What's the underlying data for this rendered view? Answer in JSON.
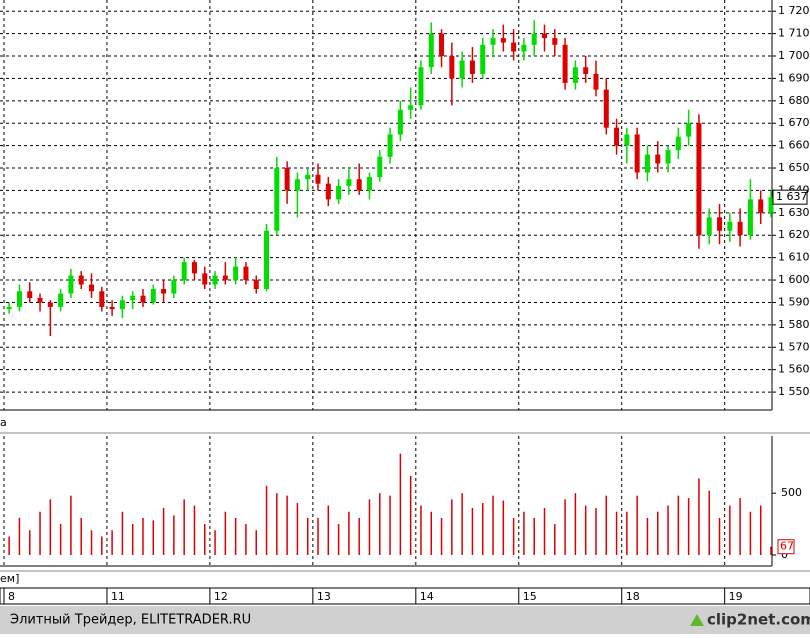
{
  "chart_data": {
    "type": "candlestick",
    "panel_label": "а",
    "volume_panel_label": "ем]",
    "footer_text": "Элитный Трейдер, ELITETRADER.RU",
    "logo_text": "clip2net.com",
    "up_color": "#00dd00",
    "down_color": "#dd0000",
    "volume_color": "#dd0000",
    "grid": true,
    "xlim": [
      0,
      74.5
    ],
    "xticks": [
      {
        "value": 0,
        "label": "8"
      },
      {
        "value": 10,
        "label": "11"
      },
      {
        "value": 20,
        "label": "12"
      },
      {
        "value": 30,
        "label": "13"
      },
      {
        "value": 40,
        "label": "14"
      },
      {
        "value": 50,
        "label": "15"
      },
      {
        "value": 60,
        "label": "18"
      },
      {
        "value": 70,
        "label": "19"
      }
    ],
    "ylim": [
      1542,
      1725
    ],
    "yticks": [
      {
        "value": 1550,
        "label": "1 550"
      },
      {
        "value": 1560,
        "label": "1 560"
      },
      {
        "value": 1570,
        "label": "1 570"
      },
      {
        "value": 1580,
        "label": "1 580"
      },
      {
        "value": 1590,
        "label": "1 590"
      },
      {
        "value": 1600,
        "label": "1 600"
      },
      {
        "value": 1610,
        "label": "1 610"
      },
      {
        "value": 1620,
        "label": "1 620"
      },
      {
        "value": 1630,
        "label": "1 630"
      },
      {
        "value": 1640,
        "label": "1 640"
      },
      {
        "value": 1650,
        "label": "1 650"
      },
      {
        "value": 1660,
        "label": "1 660"
      },
      {
        "value": 1670,
        "label": "1 670"
      },
      {
        "value": 1680,
        "label": "1 680"
      },
      {
        "value": 1690,
        "label": "1 690"
      },
      {
        "value": 1700,
        "label": "1 700"
      },
      {
        "value": 1710,
        "label": "1 710"
      },
      {
        "value": 1720,
        "label": "1 720"
      }
    ],
    "open": [
      1587,
      1588,
      1595,
      1592,
      1590,
      1588,
      1594,
      1602,
      1598,
      1595,
      1588,
      1587,
      1591,
      1593,
      1590,
      1596,
      1594,
      1600,
      1608,
      1603,
      1598,
      1602,
      1600,
      1606,
      1600,
      1596,
      1622,
      1650,
      1640,
      1645,
      1647,
      1643,
      1636,
      1642,
      1645,
      1640,
      1646,
      1655,
      1665,
      1676,
      1678,
      1695,
      1710,
      1700,
      1690,
      1698,
      1692,
      1705,
      1708,
      1706,
      1702,
      1705,
      1710,
      1708,
      1705,
      1688,
      1695,
      1692,
      1685,
      1668,
      1660,
      1665,
      1648,
      1656,
      1652,
      1658,
      1664,
      1670,
      1620,
      1628,
      1622,
      1626,
      1620,
      1636,
      1630
    ],
    "high": [
      1590,
      1598,
      1599,
      1594,
      1591,
      1596,
      1605,
      1604,
      1603,
      1597,
      1591,
      1593,
      1595,
      1596,
      1598,
      1600,
      1602,
      1610,
      1609,
      1606,
      1604,
      1608,
      1610,
      1608,
      1602,
      1625,
      1655,
      1653,
      1648,
      1650,
      1652,
      1646,
      1645,
      1650,
      1652,
      1648,
      1658,
      1668,
      1680,
      1686,
      1698,
      1715,
      1712,
      1706,
      1702,
      1704,
      1708,
      1712,
      1714,
      1712,
      1708,
      1716,
      1714,
      1712,
      1708,
      1698,
      1700,
      1698,
      1690,
      1672,
      1668,
      1668,
      1660,
      1662,
      1660,
      1668,
      1676,
      1674,
      1632,
      1634,
      1630,
      1632,
      1645,
      1640,
      1640
    ],
    "low": [
      1585,
      1586,
      1590,
      1586,
      1575,
      1586,
      1592,
      1596,
      1592,
      1586,
      1584,
      1583,
      1587,
      1588,
      1589,
      1590,
      1592,
      1598,
      1600,
      1596,
      1596,
      1598,
      1598,
      1598,
      1594,
      1595,
      1620,
      1634,
      1628,
      1640,
      1640,
      1633,
      1634,
      1638,
      1638,
      1636,
      1644,
      1652,
      1662,
      1672,
      1676,
      1692,
      1695,
      1678,
      1686,
      1688,
      1690,
      1700,
      1702,
      1698,
      1698,
      1700,
      1702,
      1700,
      1685,
      1685,
      1688,
      1682,
      1665,
      1656,
      1652,
      1645,
      1644,
      1648,
      1648,
      1654,
      1660,
      1614,
      1616,
      1616,
      1617,
      1615,
      1618,
      1625,
      1628
    ],
    "close": [
      1588,
      1595,
      1592,
      1590,
      1588,
      1594,
      1602,
      1598,
      1595,
      1588,
      1587,
      1591,
      1593,
      1590,
      1596,
      1594,
      1600,
      1608,
      1603,
      1598,
      1602,
      1600,
      1606,
      1600,
      1596,
      1622,
      1650,
      1640,
      1645,
      1647,
      1643,
      1636,
      1642,
      1645,
      1640,
      1646,
      1655,
      1665,
      1676,
      1678,
      1695,
      1710,
      1700,
      1690,
      1698,
      1692,
      1705,
      1708,
      1706,
      1702,
      1705,
      1710,
      1708,
      1705,
      1688,
      1695,
      1692,
      1685,
      1668,
      1660,
      1665,
      1648,
      1656,
      1652,
      1658,
      1664,
      1670,
      1620,
      1628,
      1622,
      1626,
      1620,
      1636,
      1630,
      1637
    ],
    "last_price_label": "1 637",
    "volume": [
      150,
      300,
      200,
      350,
      450,
      250,
      480,
      300,
      200,
      150,
      200,
      350,
      250,
      300,
      280,
      380,
      320,
      450,
      400,
      250,
      200,
      350,
      300,
      250,
      200,
      560,
      500,
      480,
      420,
      300,
      300,
      400,
      250,
      350,
      300,
      450,
      500,
      480,
      820,
      640,
      400,
      350,
      300,
      450,
      500,
      380,
      420,
      480,
      440,
      300,
      350,
      300,
      380,
      250,
      450,
      500,
      400,
      380,
      480,
      350,
      350,
      480,
      300,
      350,
      400,
      480,
      460,
      620,
      520,
      300,
      400,
      460,
      350,
      400,
      67
    ],
    "volume_ylim": [
      0,
      930
    ],
    "volume_yticks": [
      0,
      500
    ]
  }
}
